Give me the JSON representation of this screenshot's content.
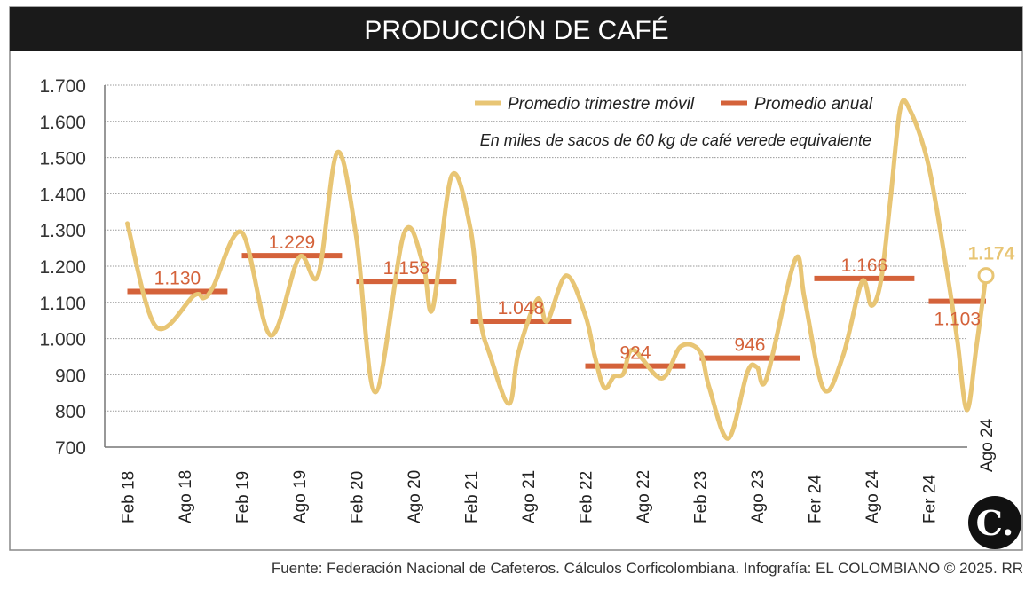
{
  "header": {
    "title": "PRODUCCIÓN DE CAFÉ"
  },
  "footer": {
    "source": "Fuente: Federación Nacional de Cafeteros. Cálculos Corficolombiana. Infografía: EL COLOMBIANO © 2025. RR"
  },
  "logo": {
    "text": "C."
  },
  "chart_data": {
    "type": "line",
    "title": "PRODUCCIÓN DE CAFÉ",
    "subtitle": "En miles de sacos de 60 kg de café verede equivalente",
    "ylim": [
      700,
      1700
    ],
    "yticks": [
      "1.700",
      "1.600",
      "1.500",
      "1.400",
      "1.300",
      "1.200",
      "1.100",
      "1.000",
      "900",
      "800",
      "700"
    ],
    "ytick_values": [
      1700,
      1600,
      1500,
      1400,
      1300,
      1200,
      1100,
      1000,
      900,
      800,
      700
    ],
    "xticks": [
      "Feb 18",
      "Ago 18",
      "Feb 19",
      "Ago 19",
      "Feb 20",
      "Ago 20",
      "Feb 21",
      "Ago 21",
      "Feb 22",
      "Ago 22",
      "Feb 23",
      "Ago 23",
      "Fer 24",
      "Ago 24",
      "Fer 24",
      "Ago 24"
    ],
    "xtick_dates": [
      "2018-02",
      "2018-08",
      "2019-02",
      "2019-08",
      "2020-02",
      "2020-08",
      "2021-02",
      "2021-08",
      "2022-02",
      "2022-08",
      "2023-02",
      "2023-08",
      "2024-02",
      "2024-08",
      "2025-02",
      "2025-08"
    ],
    "grid": true,
    "legend": {
      "position": "top-right",
      "entries": [
        "Promedio trimestre móvil",
        "Promedio anual"
      ]
    },
    "colors": {
      "moving_avg": "#e8c574",
      "annual_avg": "#d4623a",
      "header_bg": "#1a1a1a"
    },
    "series": [
      {
        "name": "Promedio trimestre móvil",
        "points": [
          [
            "2018-02",
            1318
          ],
          [
            "2018-05",
            1033
          ],
          [
            "2018-09",
            1119
          ],
          [
            "2018-10",
            1112
          ],
          [
            "2018-11",
            1143
          ],
          [
            "2019-02",
            1293
          ],
          [
            "2019-05",
            1009
          ],
          [
            "2019-08",
            1224
          ],
          [
            "2019-10",
            1175
          ],
          [
            "2019-12",
            1514
          ],
          [
            "2020-02",
            1281
          ],
          [
            "2020-04",
            852
          ],
          [
            "2020-07",
            1290
          ],
          [
            "2020-09",
            1207
          ],
          [
            "2020-10",
            1082
          ],
          [
            "2020-12",
            1450
          ],
          [
            "2021-02",
            1298
          ],
          [
            "2021-03",
            1053
          ],
          [
            "2021-04",
            955
          ],
          [
            "2021-06",
            820
          ],
          [
            "2021-07",
            962
          ],
          [
            "2021-09",
            1109
          ],
          [
            "2021-10",
            1048
          ],
          [
            "2021-12",
            1174
          ],
          [
            "2022-02",
            1065
          ],
          [
            "2022-03",
            951
          ],
          [
            "2022-04",
            864
          ],
          [
            "2022-05",
            895
          ],
          [
            "2022-06",
            903
          ],
          [
            "2022-07",
            969
          ],
          [
            "2022-10",
            890
          ],
          [
            "2022-12",
            978
          ],
          [
            "2023-02",
            965
          ],
          [
            "2023-03",
            864
          ],
          [
            "2023-05",
            724
          ],
          [
            "2023-07",
            908
          ],
          [
            "2023-08",
            921
          ],
          [
            "2023-09",
            890
          ],
          [
            "2023-12",
            1218
          ],
          [
            "2024-01",
            1109
          ],
          [
            "2024-03",
            860
          ],
          [
            "2024-05",
            951
          ],
          [
            "2024-07",
            1157
          ],
          [
            "2024-08",
            1091
          ],
          [
            "2024-09",
            1161
          ],
          [
            "2024-10",
            1388
          ],
          [
            "2024-11",
            1633
          ],
          [
            "2024-12",
            1633
          ],
          [
            "2025-02",
            1476
          ],
          [
            "2025-04",
            1170
          ],
          [
            "2025-05",
            995
          ],
          [
            "2025-06",
            803
          ],
          [
            "2025-07",
            978
          ],
          [
            "2025-08",
            1174
          ]
        ],
        "end_label": "1.174"
      },
      {
        "name": "Promedio anual",
        "bars": [
          {
            "year": 2018,
            "value": 1130,
            "label": "1.130"
          },
          {
            "year": 2019,
            "value": 1229,
            "label": "1.229"
          },
          {
            "year": 2020,
            "value": 1158,
            "label": "1.158"
          },
          {
            "year": 2021,
            "value": 1048,
            "label": "1.048"
          },
          {
            "year": 2022,
            "value": 924,
            "label": "924"
          },
          {
            "year": 2023,
            "value": 946,
            "label": "946"
          },
          {
            "year": 2024,
            "value": 1166,
            "label": "1.166"
          },
          {
            "year": 2025,
            "value": 1103,
            "label": "1.103"
          }
        ]
      }
    ]
  }
}
